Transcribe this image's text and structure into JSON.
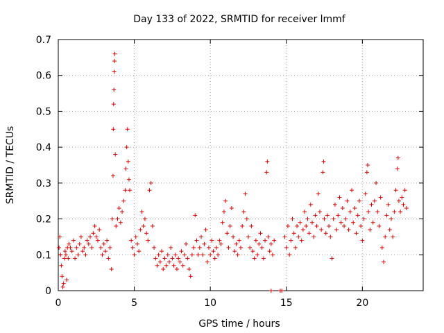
{
  "chart_data": {
    "type": "scatter",
    "title": "Day 133 of 2022, SRMTID for receiver lmmf",
    "xlabel": "GPS time / hours",
    "ylabel": "SRMTID / TECUs",
    "xlim": [
      0,
      24
    ],
    "ylim": [
      0,
      0.7
    ],
    "xticks": [
      0,
      5,
      10,
      15,
      20
    ],
    "yticks": [
      0,
      0.1,
      0.2,
      0.3,
      0.4,
      0.5,
      0.6,
      0.7
    ],
    "grid": true,
    "marker": "+",
    "color": "#e00000",
    "series": [
      {
        "name": "SRMTID",
        "points": [
          [
            0.05,
            0.12
          ],
          [
            0.1,
            0.15
          ],
          [
            0.15,
            0.1
          ],
          [
            0.2,
            0.07
          ],
          [
            0.25,
            0.04
          ],
          [
            0.3,
            0.01
          ],
          [
            0.35,
            0.02
          ],
          [
            0.4,
            0.09
          ],
          [
            0.45,
            0.11
          ],
          [
            0.5,
            0.1
          ],
          [
            0.55,
            0.03
          ],
          [
            0.6,
            0.12
          ],
          [
            0.65,
            0.09
          ],
          [
            0.7,
            0.13
          ],
          [
            0.8,
            0.12
          ],
          [
            0.9,
            0.11
          ],
          [
            1.0,
            0.14
          ],
          [
            1.1,
            0.09
          ],
          [
            1.2,
            0.12
          ],
          [
            1.3,
            0.1
          ],
          [
            1.4,
            0.13
          ],
          [
            1.5,
            0.15
          ],
          [
            1.6,
            0.11
          ],
          [
            1.7,
            0.12
          ],
          [
            1.8,
            0.1
          ],
          [
            1.9,
            0.14
          ],
          [
            2.0,
            0.13
          ],
          [
            2.1,
            0.15
          ],
          [
            2.2,
            0.12
          ],
          [
            2.3,
            0.16
          ],
          [
            2.4,
            0.18
          ],
          [
            2.5,
            0.15
          ],
          [
            2.6,
            0.14
          ],
          [
            2.7,
            0.17
          ],
          [
            2.8,
            0.12
          ],
          [
            2.9,
            0.1
          ],
          [
            3.0,
            0.13
          ],
          [
            3.1,
            0.11
          ],
          [
            3.2,
            0.14
          ],
          [
            3.3,
            0.09
          ],
          [
            3.4,
            0.12
          ],
          [
            3.5,
            0.06
          ],
          [
            3.55,
            0.2
          ],
          [
            3.6,
            0.32
          ],
          [
            3.62,
            0.45
          ],
          [
            3.64,
            0.52
          ],
          [
            3.66,
            0.56
          ],
          [
            3.68,
            0.61
          ],
          [
            3.7,
            0.64
          ],
          [
            3.72,
            0.66
          ],
          [
            3.75,
            0.38
          ],
          [
            3.8,
            0.18
          ],
          [
            3.9,
            0.2
          ],
          [
            4.0,
            0.23
          ],
          [
            4.1,
            0.19
          ],
          [
            4.2,
            0.22
          ],
          [
            4.3,
            0.25
          ],
          [
            4.4,
            0.28
          ],
          [
            4.45,
            0.34
          ],
          [
            4.5,
            0.4
          ],
          [
            4.55,
            0.45
          ],
          [
            4.6,
            0.36
          ],
          [
            4.65,
            0.31
          ],
          [
            4.7,
            0.28
          ],
          [
            4.8,
            0.14
          ],
          [
            4.9,
            0.12
          ],
          [
            5.0,
            0.1
          ],
          [
            5.1,
            0.15
          ],
          [
            5.2,
            0.13
          ],
          [
            5.3,
            0.11
          ],
          [
            5.4,
            0.17
          ],
          [
            5.5,
            0.22
          ],
          [
            5.6,
            0.18
          ],
          [
            5.7,
            0.2
          ],
          [
            5.8,
            0.16
          ],
          [
            5.9,
            0.14
          ],
          [
            6.0,
            0.28
          ],
          [
            6.1,
            0.3
          ],
          [
            6.2,
            0.18
          ],
          [
            6.3,
            0.12
          ],
          [
            6.4,
            0.09
          ],
          [
            6.5,
            0.07
          ],
          [
            6.6,
            0.1
          ],
          [
            6.7,
            0.08
          ],
          [
            6.8,
            0.11
          ],
          [
            6.9,
            0.06
          ],
          [
            7.0,
            0.09
          ],
          [
            7.1,
            0.07
          ],
          [
            7.2,
            0.1
          ],
          [
            7.3,
            0.08
          ],
          [
            7.4,
            0.12
          ],
          [
            7.5,
            0.09
          ],
          [
            7.6,
            0.07
          ],
          [
            7.7,
            0.1
          ],
          [
            7.8,
            0.06
          ],
          [
            7.9,
            0.09
          ],
          [
            8.0,
            0.08
          ],
          [
            8.1,
            0.11
          ],
          [
            8.2,
            0.07
          ],
          [
            8.3,
            0.1
          ],
          [
            8.4,
            0.13
          ],
          [
            8.5,
            0.09
          ],
          [
            8.6,
            0.06
          ],
          [
            8.7,
            0.04
          ],
          [
            8.8,
            0.1
          ],
          [
            8.9,
            0.12
          ],
          [
            9.0,
            0.21
          ],
          [
            9.1,
            0.14
          ],
          [
            9.2,
            0.1
          ],
          [
            9.3,
            0.12
          ],
          [
            9.4,
            0.15
          ],
          [
            9.5,
            0.1
          ],
          [
            9.6,
            0.13
          ],
          [
            9.7,
            0.17
          ],
          [
            9.8,
            0.08
          ],
          [
            9.9,
            0.12
          ],
          [
            10.0,
            0.1
          ],
          [
            10.1,
            0.14
          ],
          [
            10.2,
            0.11
          ],
          [
            10.3,
            0.09
          ],
          [
            10.4,
            0.12
          ],
          [
            10.5,
            0.1
          ],
          [
            10.6,
            0.14
          ],
          [
            10.7,
            0.13
          ],
          [
            10.8,
            0.19
          ],
          [
            10.9,
            0.22
          ],
          [
            11.0,
            0.25
          ],
          [
            11.1,
            0.16
          ],
          [
            11.2,
            0.12
          ],
          [
            11.3,
            0.18
          ],
          [
            11.4,
            0.23
          ],
          [
            11.5,
            0.15
          ],
          [
            11.6,
            0.11
          ],
          [
            11.7,
            0.13
          ],
          [
            11.8,
            0.1
          ],
          [
            11.9,
            0.14
          ],
          [
            12.0,
            0.12
          ],
          [
            12.1,
            0.18
          ],
          [
            12.2,
            0.22
          ],
          [
            12.3,
            0.27
          ],
          [
            12.4,
            0.2
          ],
          [
            12.5,
            0.15
          ],
          [
            12.6,
            0.12
          ],
          [
            12.7,
            0.18
          ],
          [
            12.8,
            0.11
          ],
          [
            12.9,
            0.09
          ],
          [
            13.0,
            0.14
          ],
          [
            13.1,
            0.1
          ],
          [
            13.2,
            0.13
          ],
          [
            13.3,
            0.16
          ],
          [
            13.4,
            0.12
          ],
          [
            13.5,
            0.09
          ],
          [
            13.6,
            0.14
          ],
          [
            13.7,
            0.33
          ],
          [
            13.75,
            0.36
          ],
          [
            13.8,
            0.15
          ],
          [
            13.9,
            0.11
          ],
          [
            14.0,
            0.13
          ],
          [
            14.1,
            0.1
          ],
          [
            14.2,
            0.14
          ],
          [
            14.0,
            0.0
          ],
          [
            14.6,
            0.0
          ],
          [
            14.7,
            0.0
          ],
          [
            14.9,
            0.15
          ],
          [
            15.0,
            0.12
          ],
          [
            15.1,
            0.18
          ],
          [
            15.2,
            0.1
          ],
          [
            15.3,
            0.14
          ],
          [
            15.4,
            0.2
          ],
          [
            15.5,
            0.16
          ],
          [
            15.6,
            0.12
          ],
          [
            15.7,
            0.18
          ],
          [
            15.8,
            0.15
          ],
          [
            15.9,
            0.19
          ],
          [
            16.0,
            0.14
          ],
          [
            16.1,
            0.17
          ],
          [
            16.2,
            0.22
          ],
          [
            16.3,
            0.18
          ],
          [
            16.4,
            0.2
          ],
          [
            16.5,
            0.16
          ],
          [
            16.6,
            0.24
          ],
          [
            16.7,
            0.19
          ],
          [
            16.8,
            0.15
          ],
          [
            16.9,
            0.21
          ],
          [
            17.0,
            0.18
          ],
          [
            17.1,
            0.27
          ],
          [
            17.2,
            0.22
          ],
          [
            17.3,
            0.17
          ],
          [
            17.4,
            0.33
          ],
          [
            17.45,
            0.36
          ],
          [
            17.5,
            0.2
          ],
          [
            17.6,
            0.16
          ],
          [
            17.7,
            0.21
          ],
          [
            17.8,
            0.18
          ],
          [
            17.9,
            0.15
          ],
          [
            18.0,
            0.09
          ],
          [
            18.1,
            0.2
          ],
          [
            18.2,
            0.24
          ],
          [
            18.3,
            0.17
          ],
          [
            18.4,
            0.21
          ],
          [
            18.5,
            0.26
          ],
          [
            18.6,
            0.19
          ],
          [
            18.7,
            0.23
          ],
          [
            18.8,
            0.18
          ],
          [
            18.9,
            0.2
          ],
          [
            19.0,
            0.25
          ],
          [
            19.1,
            0.17
          ],
          [
            19.2,
            0.22
          ],
          [
            19.3,
            0.28
          ],
          [
            19.4,
            0.19
          ],
          [
            19.5,
            0.23
          ],
          [
            19.6,
            0.16
          ],
          [
            19.7,
            0.21
          ],
          [
            19.8,
            0.25
          ],
          [
            19.9,
            0.18
          ],
          [
            20.0,
            0.14
          ],
          [
            20.1,
            0.2
          ],
          [
            20.2,
            0.27
          ],
          [
            20.3,
            0.33
          ],
          [
            20.35,
            0.35
          ],
          [
            20.4,
            0.22
          ],
          [
            20.5,
            0.17
          ],
          [
            20.6,
            0.24
          ],
          [
            20.7,
            0.19
          ],
          [
            20.8,
            0.25
          ],
          [
            20.9,
            0.3
          ],
          [
            21.0,
            0.22
          ],
          [
            21.1,
            0.18
          ],
          [
            21.2,
            0.26
          ],
          [
            21.3,
            0.12
          ],
          [
            21.4,
            0.08
          ],
          [
            21.5,
            0.15
          ],
          [
            21.6,
            0.21
          ],
          [
            21.7,
            0.24
          ],
          [
            21.8,
            0.17
          ],
          [
            21.9,
            0.2
          ],
          [
            22.0,
            0.15
          ],
          [
            22.1,
            0.22
          ],
          [
            22.2,
            0.28
          ],
          [
            22.3,
            0.34
          ],
          [
            22.35,
            0.37
          ],
          [
            22.4,
            0.25
          ],
          [
            22.5,
            0.22
          ],
          [
            22.6,
            0.26
          ],
          [
            22.7,
            0.24
          ],
          [
            22.8,
            0.28
          ],
          [
            22.9,
            0.23
          ]
        ]
      }
    ]
  }
}
